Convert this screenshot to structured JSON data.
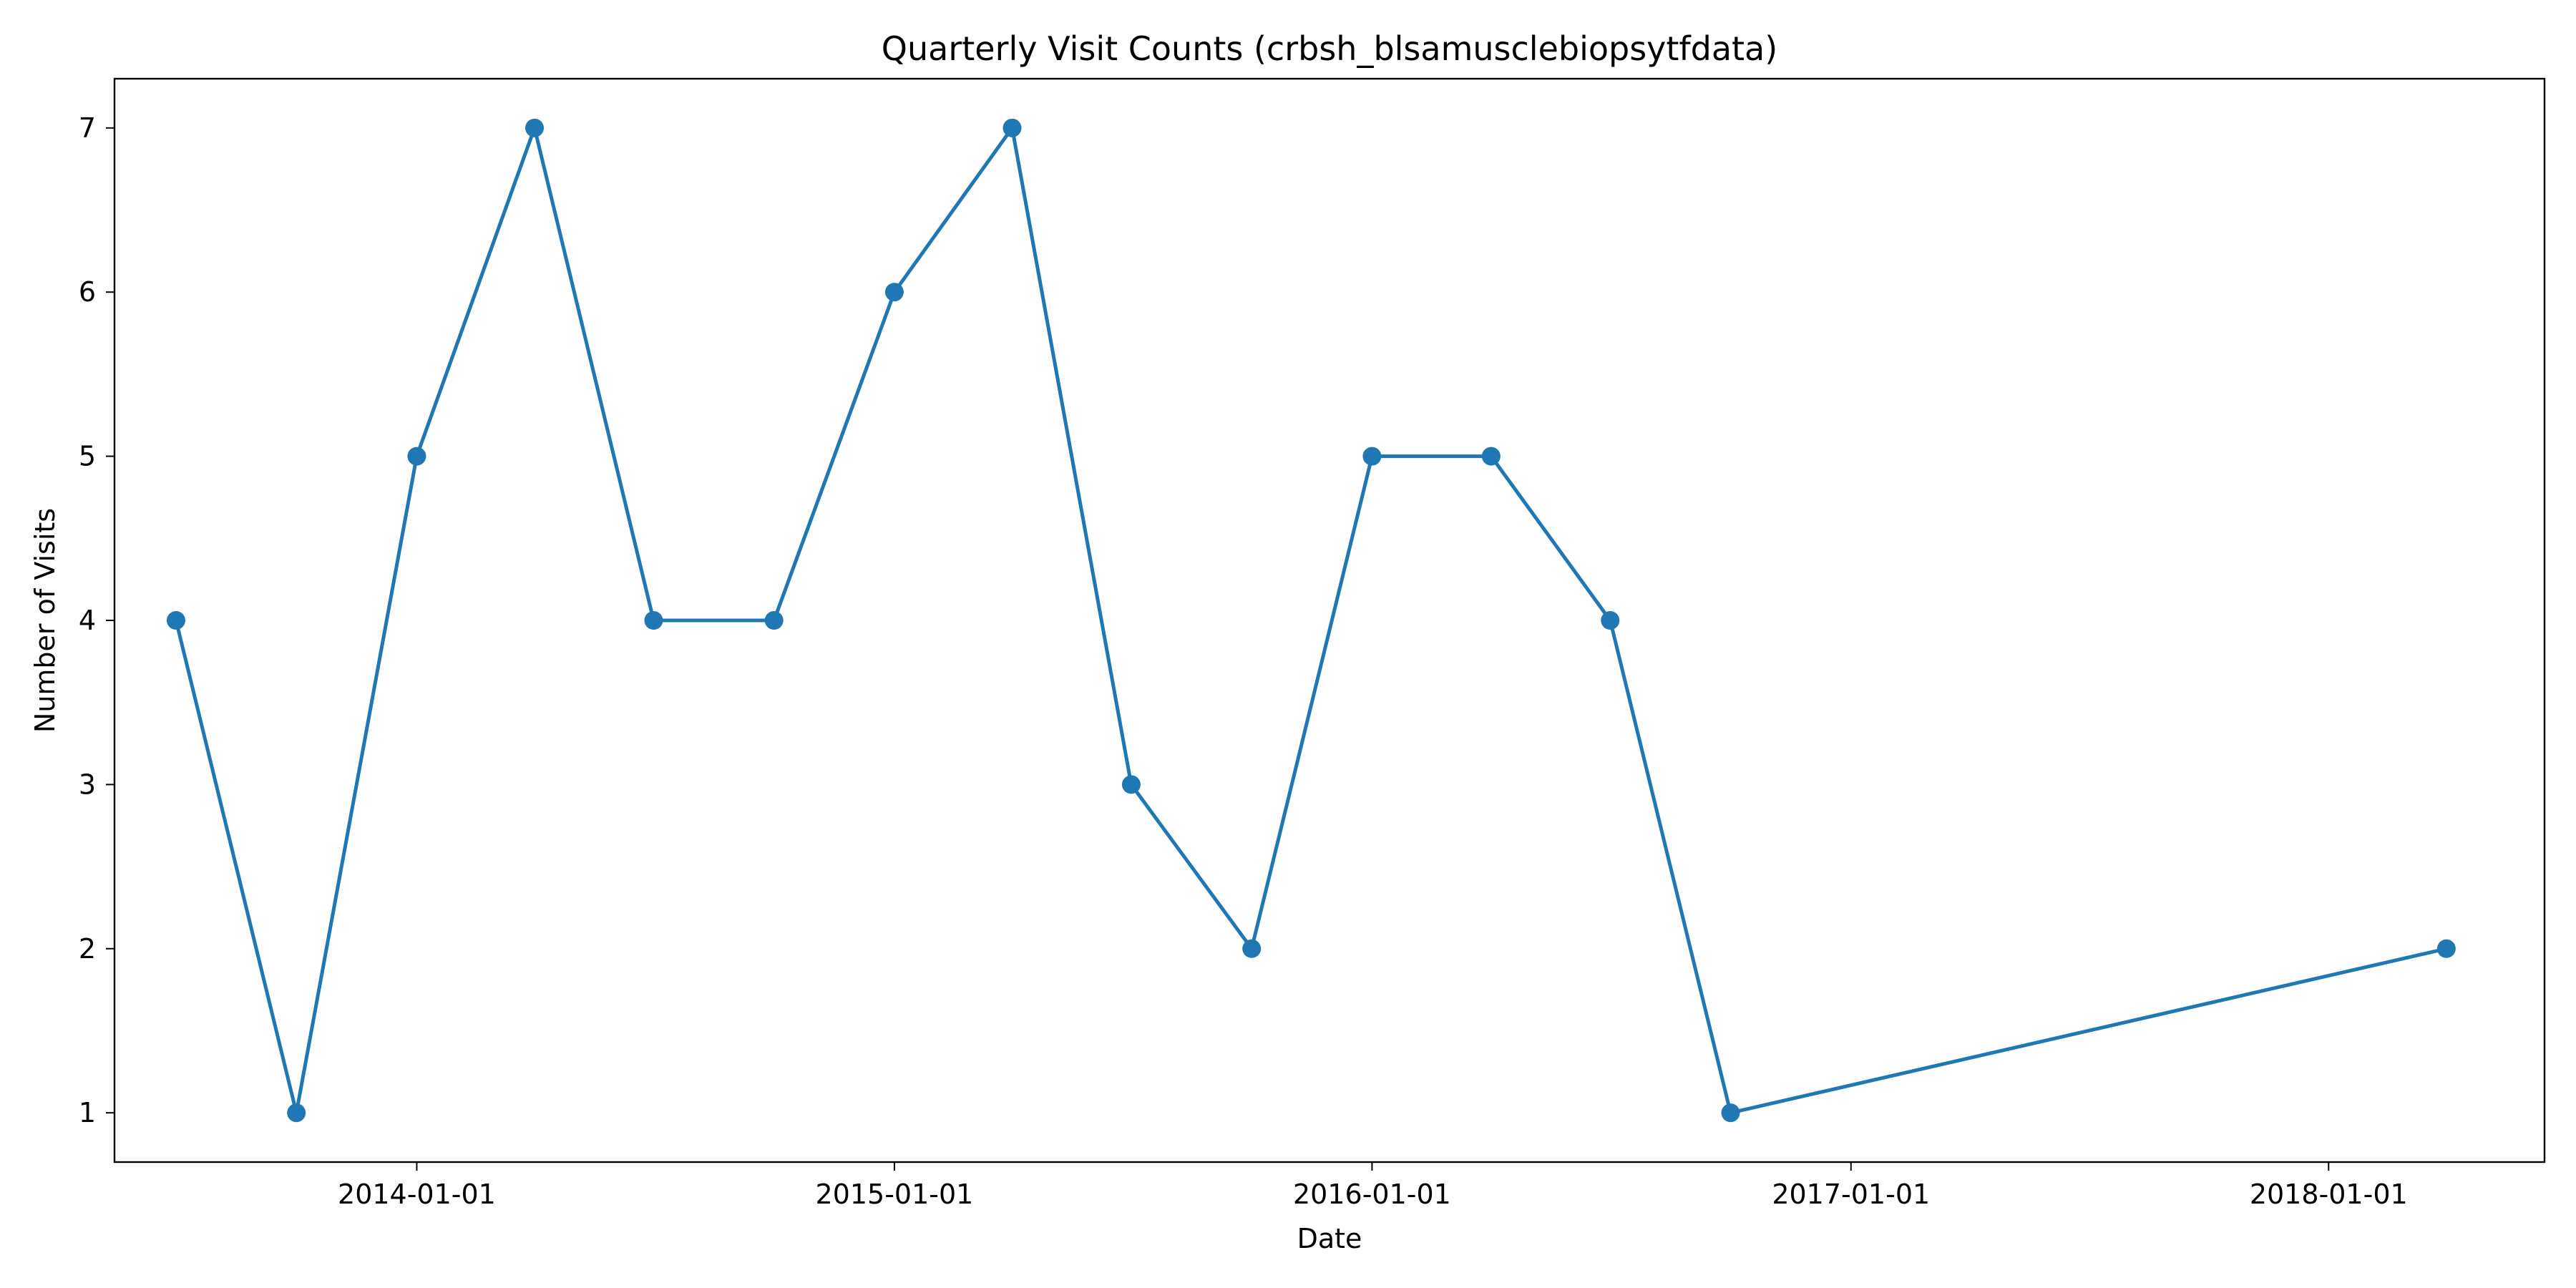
{
  "chart_data": {
    "type": "line",
    "title": "Quarterly Visit Counts (crbsh_blsamusclebiopsytfdata)",
    "xlabel": "Date",
    "ylabel": "Number of Visits",
    "x": [
      "2013-07-01",
      "2013-10-01",
      "2014-01-01",
      "2014-04-01",
      "2014-07-01",
      "2014-10-01",
      "2015-01-01",
      "2015-04-01",
      "2015-07-01",
      "2015-10-01",
      "2016-01-01",
      "2016-04-01",
      "2016-07-01",
      "2016-10-01",
      "2018-04-01"
    ],
    "series": [
      {
        "values": [
          4,
          1,
          5,
          7,
          4,
          4,
          6,
          7,
          3,
          2,
          5,
          5,
          4,
          1,
          2
        ]
      }
    ],
    "x_ticks": [
      "2014-01-01",
      "2015-01-01",
      "2016-01-01",
      "2017-01-01",
      "2018-01-01"
    ],
    "y_ticks": [
      1,
      2,
      3,
      4,
      5,
      6,
      7
    ],
    "xlim": [
      "2013-05-15",
      "2018-06-15"
    ],
    "ylim": [
      0.7,
      7.3
    ],
    "grid": false,
    "line_color": "#1f77b4",
    "marker": "circle"
  }
}
